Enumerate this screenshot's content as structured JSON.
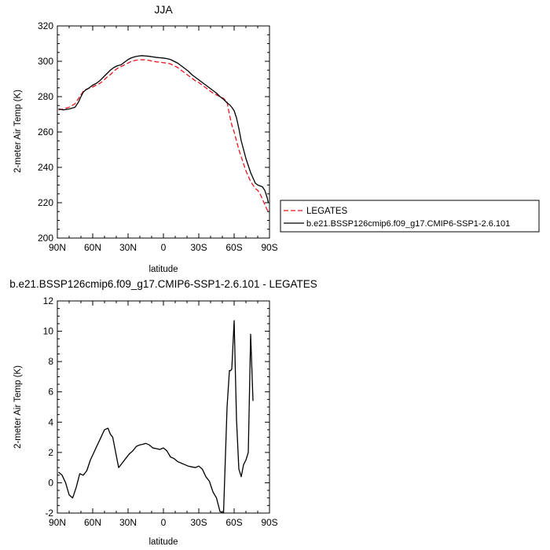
{
  "chart_data": [
    {
      "type": "line",
      "title": "JJA",
      "xlabel": "latitude",
      "ylabel": "2-meter Air Temp (K)",
      "xlim": [
        90,
        -90
      ],
      "ylim": [
        200,
        320
      ],
      "x_ticks": [
        90,
        60,
        30,
        0,
        -30,
        -60,
        -90
      ],
      "x_tick_labels": [
        "90N",
        "60N",
        "30N",
        "0",
        "30S",
        "60S",
        "90S"
      ],
      "y_ticks": [
        200,
        220,
        240,
        260,
        280,
        300,
        320
      ],
      "y_tick_labels": [
        "200",
        "220",
        "240",
        "260",
        "280",
        "300",
        "320"
      ],
      "grid": false,
      "legend_position": "outside-right",
      "series": [
        {
          "name": "LEGATES",
          "color": "#e8141e",
          "dash": "dashed",
          "x": [
            89,
            85,
            80,
            75,
            72,
            70,
            68,
            66,
            64,
            62,
            60,
            57,
            54,
            51,
            48,
            45,
            42,
            39,
            36,
            33,
            30,
            27,
            24,
            21,
            18,
            15,
            12,
            9,
            6,
            3,
            0,
            -3,
            -6,
            -9,
            -12,
            -15,
            -18,
            -21,
            -24,
            -27,
            -30,
            -33,
            -36,
            -39,
            -42,
            -45,
            -48,
            -51,
            -54,
            -56,
            -58,
            -60,
            -62,
            -64,
            -66,
            -68,
            -70,
            -72,
            -74,
            -76,
            -78,
            -80,
            -82,
            -84,
            -86,
            -88,
            -89
          ],
          "y": [
            272.5,
            273,
            274,
            276,
            279,
            281,
            283,
            284,
            284.5,
            285,
            285.5,
            286.5,
            287.5,
            289,
            291,
            292.5,
            294.5,
            296,
            297,
            298,
            299,
            300,
            300.5,
            300.8,
            300.9,
            300.8,
            300.5,
            300,
            299.7,
            299.5,
            299.2,
            299,
            298.5,
            297.5,
            296.5,
            295,
            293.5,
            292,
            290.5,
            289,
            288,
            286.5,
            285,
            283.5,
            282,
            281,
            280,
            279,
            277,
            270,
            264,
            260,
            255,
            250,
            246,
            242,
            238,
            235,
            232,
            230,
            228,
            227,
            225,
            222,
            219,
            216,
            215
          ]
        },
        {
          "name": "b.e21.BSSP126cmip6.f09_g17.CMIP6-SSP1-2.6.101",
          "color": "#000000",
          "dash": "solid",
          "x": [
            89,
            85,
            80,
            75,
            72,
            70,
            68,
            66,
            64,
            62,
            60,
            57,
            54,
            51,
            48,
            45,
            42,
            39,
            36,
            33,
            30,
            27,
            24,
            21,
            18,
            15,
            12,
            9,
            6,
            3,
            0,
            -3,
            -6,
            -9,
            -12,
            -15,
            -18,
            -21,
            -24,
            -27,
            -30,
            -33,
            -36,
            -39,
            -42,
            -45,
            -48,
            -51,
            -54,
            -56,
            -58,
            -60,
            -62,
            -64,
            -66,
            -68,
            -70,
            -72,
            -74,
            -76,
            -78,
            -80,
            -82,
            -84,
            -86,
            -88,
            -89
          ],
          "y": [
            273,
            272.5,
            273,
            274,
            277,
            280,
            282.5,
            283.8,
            284.5,
            285.5,
            286.5,
            287.5,
            289,
            291,
            293,
            295,
            296.5,
            297.5,
            298,
            299.5,
            301,
            302,
            302.6,
            303,
            303.2,
            303,
            302.8,
            302.5,
            302.2,
            302,
            301.8,
            301.5,
            301,
            300,
            299,
            297.5,
            296,
            294.5,
            292.5,
            291,
            289.5,
            288,
            286.5,
            285,
            283.5,
            282,
            280,
            278.5,
            276.5,
            275.5,
            274,
            272,
            268,
            262,
            255,
            250,
            245,
            241,
            237,
            234,
            231,
            230,
            229.5,
            229,
            227,
            223,
            220
          ]
        }
      ]
    },
    {
      "type": "line",
      "title": "b.e21.BSSP126cmip6.f09_g17.CMIP6-SSP1-2.6.101 - LEGATES",
      "xlabel": "latitude",
      "ylabel": "2-meter Air Temp (K)",
      "xlim": [
        90,
        -90
      ],
      "ylim": [
        -2,
        12
      ],
      "x_ticks": [
        90,
        60,
        30,
        0,
        -30,
        -60,
        -90
      ],
      "x_tick_labels": [
        "90N",
        "60N",
        "30N",
        "0",
        "30S",
        "60S",
        "90S"
      ],
      "y_ticks": [
        -2,
        0,
        2,
        4,
        6,
        8,
        10,
        12
      ],
      "y_tick_labels": [
        "-2",
        "0",
        "2",
        "4",
        "6",
        "8",
        "10",
        "12"
      ],
      "grid": false,
      "series": [
        {
          "color": "#000000",
          "dash": "solid",
          "x": [
            89,
            86,
            83,
            80,
            77,
            74,
            71,
            68,
            65,
            62,
            59,
            56,
            53,
            50,
            47,
            45,
            43,
            40,
            38,
            35,
            32,
            29,
            26,
            23,
            20,
            17,
            15,
            12,
            9,
            6,
            3,
            0,
            -3,
            -6,
            -9,
            -12,
            -15,
            -18,
            -21,
            -24,
            -27,
            -30,
            -33,
            -36,
            -39,
            -42,
            -45,
            -48,
            -51,
            -54,
            -56,
            -57,
            -58,
            -60,
            -62,
            -64,
            -66,
            -68,
            -70,
            -72,
            -74,
            -76,
            -78,
            -80,
            -82,
            -84,
            -86,
            -88,
            -89
          ],
          "y": [
            0.7,
            0.5,
            0,
            -0.8,
            -1.0,
            -0.3,
            0.6,
            0.5,
            0.8,
            1.5,
            2.0,
            2.5,
            3.0,
            3.5,
            3.6,
            3.2,
            3.0,
            1.8,
            1.0,
            1.3,
            1.6,
            1.9,
            2.1,
            2.4,
            2.5,
            2.55,
            2.6,
            2.5,
            2.3,
            2.25,
            2.2,
            2.3,
            2.1,
            1.7,
            1.6,
            1.4,
            1.3,
            1.2,
            1.1,
            1.05,
            1.0,
            1.1,
            0.9,
            0.4,
            0.1,
            -0.6,
            -1.0,
            -1.9,
            -2.0,
            5.0,
            7.4,
            7.4,
            7.5,
            10.7,
            4.2,
            0.9,
            0.4,
            1.2,
            1.5,
            2.0,
            9.8,
            5.4,
            null,
            null,
            null,
            null,
            null,
            null,
            null
          ]
        }
      ]
    }
  ],
  "legend": {
    "items": [
      {
        "label": "LEGATES",
        "color": "#e8141e",
        "dash": "dashed"
      },
      {
        "label": "b.e21.BSSP126cmip6.f09_g17.CMIP6-SSP1-2.6.101",
        "color": "#000000",
        "dash": "solid"
      }
    ]
  }
}
